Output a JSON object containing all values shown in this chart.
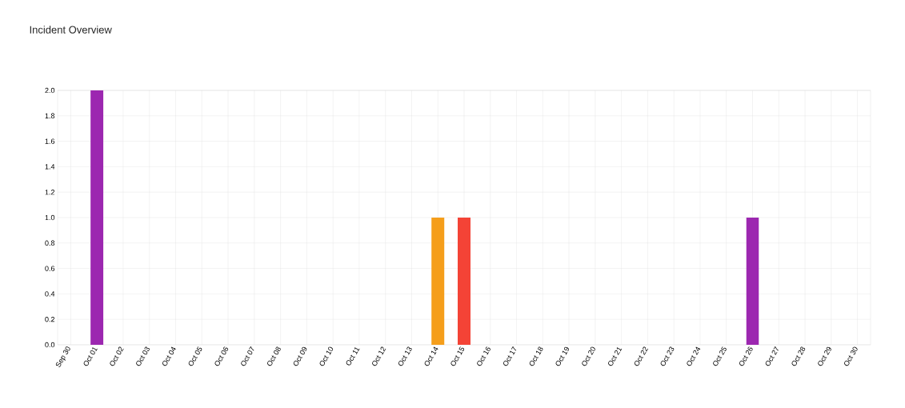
{
  "chart_data": {
    "type": "bar",
    "title": "Incident Overview",
    "categories": [
      "Sep 30",
      "Oct 01",
      "Oct 02",
      "Oct 03",
      "Oct 04",
      "Oct 05",
      "Oct 06",
      "Oct 07",
      "Oct 08",
      "Oct 09",
      "Oct 10",
      "Oct 11",
      "Oct 12",
      "Oct 13",
      "Oct 14",
      "Oct 15",
      "Oct 16",
      "Oct 17",
      "Oct 18",
      "Oct 19",
      "Oct 20",
      "Oct 21",
      "Oct 22",
      "Oct 23",
      "Oct 24",
      "Oct 25",
      "Oct 26",
      "Oct 27",
      "Oct 28",
      "Oct 29",
      "Oct 30"
    ],
    "values": [
      0,
      2,
      0,
      0,
      0,
      0,
      0,
      0,
      0,
      0,
      0,
      0,
      0,
      0,
      1,
      1,
      0,
      0,
      0,
      0,
      0,
      0,
      0,
      0,
      0,
      0,
      1,
      0,
      0,
      0,
      0
    ],
    "colors": [
      "#9c27b0",
      "#9c27b0",
      "#9c27b0",
      "#9c27b0",
      "#9c27b0",
      "#9c27b0",
      "#9c27b0",
      "#9c27b0",
      "#9c27b0",
      "#9c27b0",
      "#9c27b0",
      "#9c27b0",
      "#9c27b0",
      "#9c27b0",
      "#f59e1b",
      "#f44336",
      "#9c27b0",
      "#9c27b0",
      "#9c27b0",
      "#9c27b0",
      "#9c27b0",
      "#9c27b0",
      "#9c27b0",
      "#9c27b0",
      "#9c27b0",
      "#9c27b0",
      "#9c27b0",
      "#9c27b0",
      "#9c27b0",
      "#9c27b0",
      "#9c27b0"
    ],
    "ylim": [
      0,
      2
    ],
    "yticks": [
      {
        "value": 0,
        "label": "0.0"
      },
      0.2,
      0.4,
      0.6,
      0.8,
      {
        "value": 1,
        "label": "1.0"
      },
      1.2,
      1.4,
      1.6,
      1.8,
      {
        "value": 2,
        "label": "2.0"
      }
    ],
    "grid": true
  }
}
